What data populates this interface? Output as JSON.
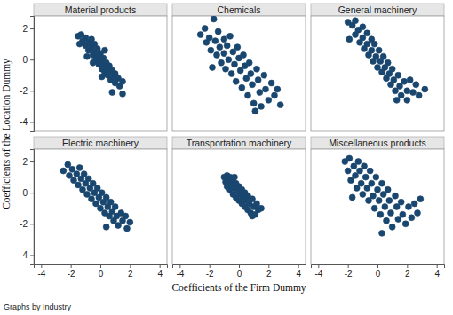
{
  "y_label": "Coefficients of the Location Dummy",
  "x_label": "Coefficients of the Firm Dummy",
  "note": "Graphs by Industry",
  "chart_data": [
    {
      "type": "scatter",
      "title": "Material products",
      "color": "#1a476f",
      "marker": "circle",
      "tick_labels": "y",
      "xlim": [
        -4.5,
        4.5
      ],
      "ylim": [
        -4.6,
        2.8
      ],
      "xticks": [
        -4,
        -2,
        0,
        2,
        4
      ],
      "yticks": [
        -4,
        -2,
        0,
        2
      ],
      "x": [
        -1.5,
        -1.3,
        -1.2,
        -1.0,
        -1.0,
        -0.8,
        -0.8,
        -0.6,
        -0.6,
        -0.5,
        -0.4,
        -0.4,
        -0.3,
        -0.2,
        -0.2,
        -0.1,
        0.0,
        0.0,
        0.1,
        0.2,
        0.2,
        0.3,
        0.4,
        0.4,
        0.5,
        0.6,
        0.6,
        0.7,
        0.8,
        0.9,
        1.0,
        1.0,
        1.2,
        1.3,
        1.5,
        1.5,
        0.8,
        -0.9,
        -1.4,
        0.3,
        0.1,
        -0.5
      ],
      "values": [
        1.5,
        1.6,
        1.2,
        1.4,
        0.9,
        1.1,
        0.6,
        1.3,
        0.8,
        0.3,
        1.0,
        0.5,
        0.0,
        0.7,
        0.2,
        -0.3,
        0.4,
        -0.1,
        -0.6,
        0.1,
        -0.3,
        -0.8,
        -0.2,
        -0.5,
        -1.0,
        -0.4,
        -0.8,
        -1.3,
        -0.7,
        -1.1,
        -0.9,
        -1.5,
        -1.2,
        -1.7,
        -1.4,
        -2.2,
        -2.1,
        0.2,
        1.0,
        0.6,
        -1.1,
        -0.2
      ]
    },
    {
      "type": "scatter",
      "title": "Chemicals",
      "color": "#1a476f",
      "marker": "circle",
      "tick_labels": false,
      "xlim": [
        -4.5,
        4.5
      ],
      "ylim": [
        -4.6,
        2.8
      ],
      "xticks": [
        -4,
        -2,
        0,
        2,
        4
      ],
      "yticks": [
        -4,
        -2,
        0,
        2
      ],
      "x": [
        -2.6,
        -2.3,
        -2.2,
        -2.0,
        -1.9,
        -1.7,
        -1.6,
        -1.5,
        -1.4,
        -1.3,
        -1.2,
        -1.0,
        -1.0,
        -0.9,
        -0.8,
        -0.7,
        -0.6,
        -0.5,
        -0.4,
        -0.3,
        -0.2,
        -0.1,
        0.0,
        0.1,
        0.2,
        0.3,
        0.4,
        0.5,
        0.6,
        0.7,
        0.8,
        0.9,
        1.0,
        1.2,
        1.3,
        1.4,
        1.5,
        1.7,
        1.8,
        2.0,
        2.2,
        2.4,
        2.6,
        2.8,
        1.1,
        -1.8
      ],
      "values": [
        1.6,
        2.0,
        1.1,
        1.4,
        0.6,
        2.6,
        1.2,
        0.3,
        1.8,
        0.8,
        -0.2,
        1.3,
        0.4,
        -0.6,
        0.9,
        0.0,
        1.5,
        -0.9,
        0.5,
        -0.3,
        -1.4,
        0.8,
        0.1,
        -0.7,
        -1.8,
        0.3,
        -0.4,
        -1.2,
        -2.3,
        -0.2,
        -0.9,
        -1.6,
        -2.8,
        -0.6,
        -1.3,
        -2.1,
        -3.0,
        -1.0,
        -1.9,
        -2.6,
        -1.5,
        -2.3,
        -1.9,
        -2.9,
        -3.3,
        -0.5
      ]
    },
    {
      "type": "scatter",
      "title": "General machinery",
      "color": "#1a476f",
      "marker": "circle",
      "tick_labels": false,
      "xlim": [
        -4.5,
        4.5
      ],
      "ylim": [
        -4.6,
        2.8
      ],
      "xticks": [
        -4,
        -2,
        0,
        2,
        4
      ],
      "yticks": [
        -4,
        -2,
        0,
        2
      ],
      "x": [
        -2.0,
        -1.7,
        -1.5,
        -1.5,
        -1.3,
        -1.2,
        -1.0,
        -1.0,
        -0.9,
        -0.7,
        -0.7,
        -0.6,
        -0.4,
        -0.4,
        -0.3,
        -0.2,
        -0.1,
        0.0,
        0.1,
        0.2,
        0.3,
        0.4,
        0.5,
        0.6,
        0.7,
        0.8,
        0.9,
        1.0,
        1.1,
        1.2,
        1.4,
        1.5,
        1.6,
        1.8,
        2.0,
        2.2,
        2.4,
        2.6,
        2.8,
        3.2,
        1.3,
        2.0,
        -1.9
      ],
      "values": [
        2.4,
        2.2,
        2.5,
        1.6,
        1.9,
        1.1,
        2.1,
        1.4,
        0.7,
        1.7,
        1.0,
        0.3,
        1.3,
        0.6,
        -0.1,
        1.0,
        0.2,
        -0.5,
        0.6,
        -0.1,
        -0.8,
        0.2,
        -0.5,
        -1.2,
        -0.2,
        -0.9,
        -1.6,
        -0.6,
        -1.3,
        -2.0,
        -1.0,
        -1.7,
        -2.3,
        -1.4,
        -2.0,
        -1.3,
        -2.1,
        -1.6,
        -2.3,
        -1.9,
        -2.6,
        -2.6,
        1.3
      ]
    },
    {
      "type": "scatter",
      "title": "Electric machinery",
      "color": "#1a476f",
      "marker": "circle",
      "tick_labels": true,
      "xlim": [
        -4.5,
        4.5
      ],
      "ylim": [
        -4.6,
        2.8
      ],
      "xticks": [
        -4,
        -2,
        0,
        2,
        4
      ],
      "yticks": [
        -4,
        -2,
        0,
        2
      ],
      "x": [
        -2.5,
        -2.2,
        -2.1,
        -1.9,
        -1.8,
        -1.6,
        -1.5,
        -1.4,
        -1.3,
        -1.2,
        -1.1,
        -1.0,
        -0.9,
        -0.8,
        -0.7,
        -0.6,
        -0.5,
        -0.4,
        -0.3,
        -0.2,
        -0.1,
        0.0,
        0.1,
        0.2,
        0.3,
        0.4,
        0.5,
        0.6,
        0.7,
        0.8,
        0.9,
        1.0,
        1.1,
        1.2,
        1.4,
        1.5,
        1.7,
        1.8,
        2.0,
        0.4
      ],
      "values": [
        1.4,
        1.8,
        1.1,
        1.5,
        0.8,
        1.2,
        0.5,
        1.6,
        0.9,
        0.2,
        1.2,
        0.6,
        -0.1,
        0.9,
        0.3,
        -0.4,
        0.6,
        0.0,
        -0.7,
        0.3,
        -0.3,
        -1.0,
        0.0,
        -0.6,
        -1.3,
        -0.3,
        -0.9,
        -1.5,
        -0.6,
        -1.2,
        -1.8,
        -0.9,
        -1.5,
        -2.1,
        -1.3,
        -1.8,
        -1.5,
        -2.3,
        -1.9,
        -2.2
      ]
    },
    {
      "type": "scatter",
      "title": "Transportation machinery",
      "color": "#1a476f",
      "marker": "circle",
      "tick_labels": "x",
      "xlim": [
        -4.5,
        4.5
      ],
      "ylim": [
        -4.6,
        2.8
      ],
      "xticks": [
        -4,
        -2,
        0,
        2,
        4
      ],
      "yticks": [
        -4,
        -2,
        0,
        2
      ],
      "x": [
        -1.0,
        -0.9,
        -0.8,
        -0.8,
        -0.7,
        -0.6,
        -0.6,
        -0.5,
        -0.4,
        -0.4,
        -0.3,
        -0.2,
        -0.2,
        -0.1,
        0.0,
        0.0,
        0.1,
        0.2,
        0.2,
        0.3,
        0.4,
        0.4,
        0.5,
        0.6,
        0.6,
        0.7,
        0.8,
        0.9,
        1.0,
        1.1,
        1.2,
        1.3,
        1.5,
        0.9,
        -0.3
      ],
      "values": [
        1.0,
        0.7,
        1.1,
        0.4,
        0.8,
        0.2,
        1.0,
        0.5,
        -0.1,
        0.8,
        0.3,
        -0.3,
        0.6,
        0.1,
        -0.5,
        0.4,
        -0.1,
        -0.7,
        0.2,
        -0.3,
        -0.9,
        0.0,
        -0.5,
        -1.1,
        -0.2,
        -0.7,
        -1.3,
        -0.4,
        -0.9,
        -1.4,
        -0.7,
        -1.1,
        -1.0,
        -1.5,
        1.0
      ]
    },
    {
      "type": "scatter",
      "title": "Miscellaneous products",
      "color": "#1a476f",
      "marker": "circle",
      "tick_labels": "x",
      "xlim": [
        -4.5,
        4.5
      ],
      "ylim": [
        -4.6,
        2.8
      ],
      "xticks": [
        -4,
        -2,
        0,
        2,
        4
      ],
      "yticks": [
        -4,
        -2,
        0,
        2
      ],
      "x": [
        -2.2,
        -2.0,
        -1.9,
        -1.8,
        -1.6,
        -1.5,
        -1.4,
        -1.3,
        -1.2,
        -1.1,
        -1.0,
        -0.9,
        -0.8,
        -0.7,
        -0.6,
        -0.5,
        -0.4,
        -0.3,
        -0.2,
        -0.1,
        0.0,
        0.1,
        0.2,
        0.3,
        0.4,
        0.5,
        0.6,
        0.7,
        0.8,
        0.9,
        1.0,
        1.2,
        1.3,
        1.4,
        1.6,
        1.7,
        1.9,
        2.1,
        2.3,
        2.5,
        2.7,
        2.9,
        0.3,
        -1.7
      ],
      "values": [
        2.0,
        1.4,
        2.2,
        0.8,
        1.7,
        1.1,
        0.3,
        2.0,
        1.4,
        0.6,
        -0.1,
        1.7,
        1.0,
        0.3,
        -0.5,
        1.4,
        0.6,
        -0.2,
        -1.0,
        1.0,
        0.2,
        -0.5,
        -1.4,
        0.6,
        -0.1,
        -0.9,
        -1.8,
        0.2,
        -0.5,
        -1.3,
        -2.2,
        -0.2,
        -0.9,
        -1.7,
        -0.6,
        -1.4,
        -2.0,
        -0.9,
        -1.6,
        -0.7,
        -1.3,
        -0.4,
        -2.6,
        -0.3
      ]
    }
  ]
}
